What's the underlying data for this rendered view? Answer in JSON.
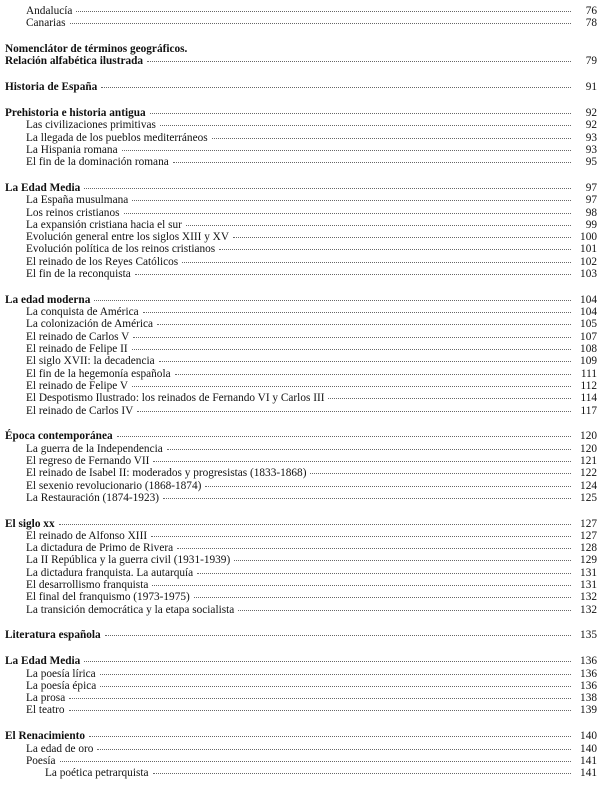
{
  "toc": [
    {
      "entries": [
        {
          "text": "Andalucía",
          "page": "76",
          "level": 1
        },
        {
          "text": "Canarias",
          "page": "78",
          "level": 1
        }
      ]
    },
    {
      "entries": [
        {
          "text": "Nomenclátor de términos geográficos.",
          "page": "",
          "level": 0
        },
        {
          "text": "Relación alfabética ilustrada",
          "page": "79",
          "level": 0
        }
      ]
    },
    {
      "entries": [
        {
          "text": "Historia de España",
          "page": "91",
          "level": 0
        }
      ]
    },
    {
      "entries": [
        {
          "text": "Prehistoria e historia antigua",
          "page": "92",
          "level": 0
        },
        {
          "text": "Las civilizaciones primitivas",
          "page": "92",
          "level": 1
        },
        {
          "text": "La llegada de los pueblos mediterráneos",
          "page": "93",
          "level": 1
        },
        {
          "text": "La Hispania romana",
          "page": "93",
          "level": 1
        },
        {
          "text": "El fin de la dominación romana",
          "page": "95",
          "level": 1
        }
      ]
    },
    {
      "entries": [
        {
          "text": "La Edad Media",
          "page": "97",
          "level": 0
        },
        {
          "text": "La España musulmana",
          "page": "97",
          "level": 1
        },
        {
          "text": "Los reinos cristianos",
          "page": "98",
          "level": 1
        },
        {
          "text": "La expansión cristiana hacia el sur",
          "page": "99",
          "level": 1
        },
        {
          "text": "Evolución general entre los siglos XIII y XV",
          "page": "100",
          "level": 1
        },
        {
          "text": "Evolución política de los reinos cristianos",
          "page": "101",
          "level": 1
        },
        {
          "text": "El reinado de los Reyes Católicos",
          "page": "102",
          "level": 1
        },
        {
          "text": "El fin de la reconquista",
          "page": "103",
          "level": 1
        }
      ]
    },
    {
      "entries": [
        {
          "text": "La edad moderna",
          "page": "104",
          "level": 0
        },
        {
          "text": "La conquista de América",
          "page": "104",
          "level": 1
        },
        {
          "text": "La colonización de América",
          "page": "105",
          "level": 1
        },
        {
          "text": "El reinado de Carlos V",
          "page": "107",
          "level": 1
        },
        {
          "text": "El reinado de Felipe II",
          "page": "108",
          "level": 1
        },
        {
          "text": "El siglo XVII: la decadencia",
          "page": "109",
          "level": 1
        },
        {
          "text": "El fin de la hegemonía española",
          "page": "111",
          "level": 1
        },
        {
          "text": "El reinado de Felipe V",
          "page": "112",
          "level": 1
        },
        {
          "text": "El Despotismo Ilustrado: los reinados de Fernando VI y Carlos III",
          "page": "114",
          "level": 1
        },
        {
          "text": "El reinado de Carlos IV",
          "page": "117",
          "level": 1
        }
      ]
    },
    {
      "entries": [
        {
          "text": "Época contemporánea",
          "page": "120",
          "level": 0
        },
        {
          "text": "La guerra de la Independencia",
          "page": "120",
          "level": 1
        },
        {
          "text": "El regreso de Fernando VII",
          "page": "121",
          "level": 1
        },
        {
          "text": "El reinado de Isabel II: moderados y progresistas (1833-1868)",
          "page": "122",
          "level": 1
        },
        {
          "text": "El sexenio revolucionario (1868-1874)",
          "page": "124",
          "level": 1
        },
        {
          "text": "La Restauración (1874-1923)",
          "page": "125",
          "level": 1
        }
      ]
    },
    {
      "entries": [
        {
          "text": "El siglo xx",
          "page": "127",
          "level": 0
        },
        {
          "text": "El reinado de Alfonso XIII",
          "page": "127",
          "level": 1
        },
        {
          "text": "La dictadura de Primo de Rivera",
          "page": "128",
          "level": 1
        },
        {
          "text": "La II República y la guerra civil (1931-1939)",
          "page": "129",
          "level": 1
        },
        {
          "text": "La dictadura franquista. La autarquía",
          "page": "131",
          "level": 1
        },
        {
          "text": "El desarrollismo franquista",
          "page": "131",
          "level": 1
        },
        {
          "text": "El final del franquismo (1973-1975)",
          "page": "132",
          "level": 1
        },
        {
          "text": "La transición democrática y la etapa socialista",
          "page": "132",
          "level": 1
        }
      ]
    },
    {
      "entries": [
        {
          "text": "Literatura española",
          "page": "135",
          "level": 0
        }
      ]
    },
    {
      "entries": [
        {
          "text": "La Edad Media",
          "page": "136",
          "level": 0
        },
        {
          "text": "La poesía lírica",
          "page": "136",
          "level": 1
        },
        {
          "text": "La poesía épica",
          "page": "136",
          "level": 1
        },
        {
          "text": "La prosa",
          "page": "138",
          "level": 1
        },
        {
          "text": "El teatro",
          "page": "139",
          "level": 1
        }
      ]
    },
    {
      "entries": [
        {
          "text": "El Renacimiento",
          "page": "140",
          "level": 0
        },
        {
          "text": "La edad de oro",
          "page": "140",
          "level": 1
        },
        {
          "text": "Poesía",
          "page": "141",
          "level": 1
        },
        {
          "text": "La poética petrarquista",
          "page": "141",
          "level": 2
        }
      ]
    }
  ]
}
